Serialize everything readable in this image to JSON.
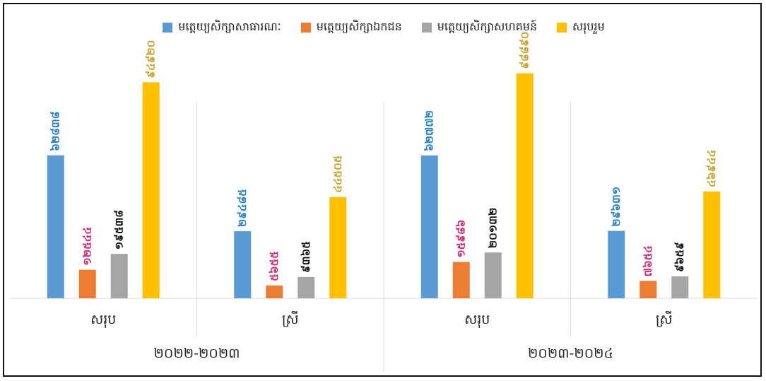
{
  "chart_data": {
    "type": "bar",
    "legend_position": "top",
    "grid": false,
    "series": [
      {
        "name": "មត្តេយ្យសិក្សាសាធារណៈ",
        "color": "#5b9bd5",
        "label_color": "#1f7fd0",
        "values": [
          62838,
          29485,
          62772,
          29631
        ],
        "labels": [
          "៦២៨៣៨",
          "២៩៤៨៥",
          "៦២៧៧២",
          "២៩៦៣១"
        ]
      },
      {
        "name": "មត្តេយ្យសិក្សាឯកជន",
        "color": "#ed7d31",
        "label_color": "#d6246e",
        "values": [
          12544,
          5655,
          15986,
          7654
        ],
        "labels": [
          "១២៥៤៤",
          "៥៦៥៥",
          "១៥៩៨៦",
          "៧៦៥៤"
        ]
      },
      {
        "name": "មត្តេយ្យសិក្សាសហគមន៍",
        "color": "#a5a5a5",
        "label_color": "#111111",
        "values": [
          19538,
          9365,
          20132,
          9659
        ],
        "labels": [
          "១៩៥៣៨",
          "៩៣៦៥",
          "២០១៣២",
          "៩៦៥៩"
        ]
      },
      {
        "name": "សរុបរួម",
        "color": "#ffc000",
        "label_color": "#c9a227",
        "values": [
          94920,
          44505,
          98890,
          46944
        ],
        "labels": [
          "៩៤៩២០",
          "៤៤៥០៥",
          "៩៨៨៩០",
          "៤៦៩៤៤"
        ]
      }
    ],
    "categories": [
      "សរុប",
      "ស្រី",
      "សរុប",
      "ស្រី"
    ],
    "year_groups": [
      "២០២២-២០២៣",
      "២០២៣-២០២៤"
    ],
    "ylim": [
      0,
      105000
    ]
  }
}
